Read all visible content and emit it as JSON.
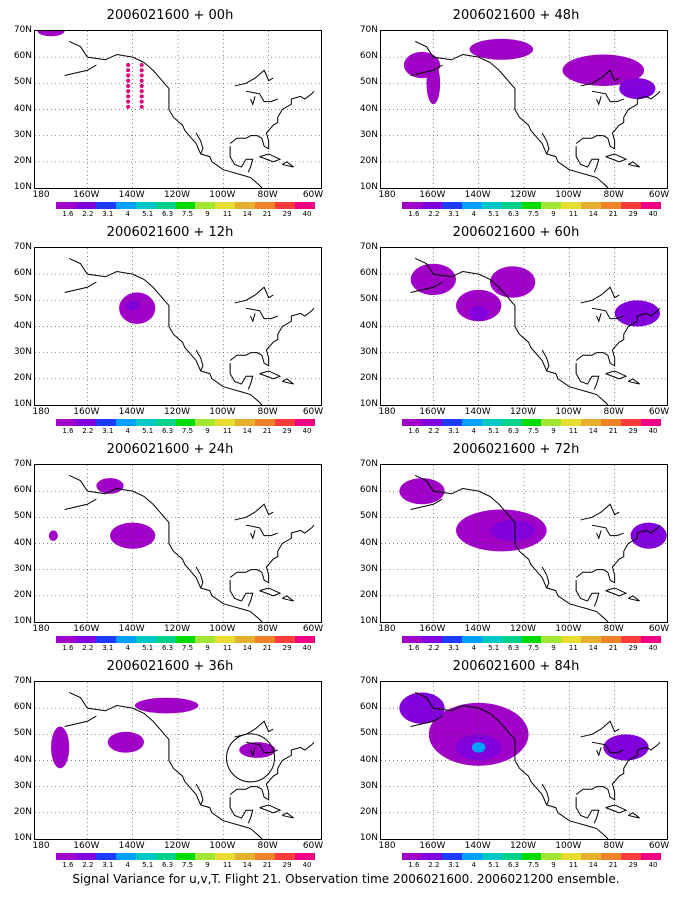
{
  "panels": [
    {
      "title": "2006021600 + 00h"
    },
    {
      "title": "2006021600 + 48h"
    },
    {
      "title": "2006021600 + 12h"
    },
    {
      "title": "2006021600 + 60h"
    },
    {
      "title": "2006021600 + 24h"
    },
    {
      "title": "2006021600 + 72h"
    },
    {
      "title": "2006021600 + 36h"
    },
    {
      "title": "2006021600 + 84h"
    }
  ],
  "lat_labels": [
    "70N",
    "60N",
    "50N",
    "40N",
    "30N",
    "20N",
    "10N"
  ],
  "lon_labels": [
    "180",
    "160W",
    "140W",
    "120W",
    "100W",
    "80W",
    "60W"
  ],
  "colorbar": {
    "labels": [
      "1.6",
      "2.2",
      "3.1",
      "4",
      "5.1",
      "6.3",
      "7.5",
      "9",
      "11",
      "14",
      "21",
      "29",
      "40"
    ],
    "colors": [
      "#a000c8",
      "#8200dc",
      "#1e3cff",
      "#00a0ff",
      "#00c8c8",
      "#00d28c",
      "#00dc00",
      "#a0e632",
      "#e6dc32",
      "#e6af2d",
      "#f08228",
      "#fa3c3c",
      "#f00082"
    ]
  },
  "caption": "Signal Variance for u,v,T. Flight 21. Observation time 2006021600. 2006021200 ensemble."
}
